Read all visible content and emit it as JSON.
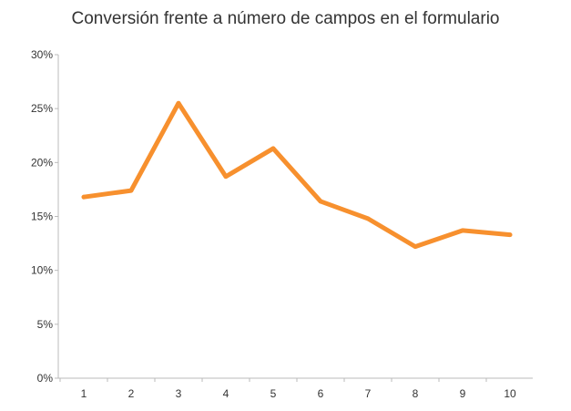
{
  "chart_data": {
    "type": "line",
    "title": "Conversión frente a número de campos en el formulario",
    "xlabel": "",
    "ylabel": "",
    "x": [
      1,
      2,
      3,
      4,
      5,
      6,
      7,
      8,
      9,
      10
    ],
    "y_tick_labels": [
      "0%",
      "5%",
      "10%",
      "15%",
      "20%",
      "25%",
      "30%"
    ],
    "y_ticks": [
      0,
      5,
      10,
      15,
      20,
      25,
      30
    ],
    "ylim": [
      0,
      30
    ],
    "series": [
      {
        "values": [
          16.8,
          17.4,
          25.5,
          18.7,
          21.3,
          16.4,
          14.8,
          12.2,
          13.7,
          13.3
        ],
        "color": "#f7902e"
      }
    ],
    "grid": false,
    "legend": "none"
  }
}
